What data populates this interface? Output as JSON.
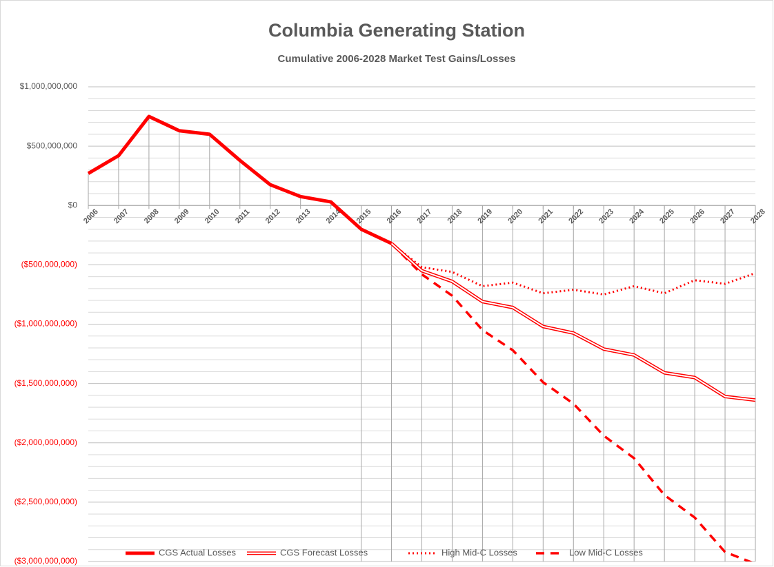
{
  "chart_data": {
    "type": "line",
    "title": "Columbia Generating Station",
    "subtitle": "Cumulative 2006-2028 Market Test Gains/Losses",
    "categories": [
      "2006",
      "2007",
      "2008",
      "2009",
      "2010",
      "2011",
      "2012",
      "2013",
      "2014",
      "2015",
      "2016",
      "2017",
      "2018",
      "2019",
      "2020",
      "2021",
      "2022",
      "2023",
      "2024",
      "2025",
      "2026",
      "2027",
      "2028"
    ],
    "series": [
      {
        "name": "CGS Actual Losses",
        "color": "#ff0000",
        "style": "solid",
        "values": [
          270000000,
          420000000,
          750000000,
          630000000,
          600000000,
          380000000,
          175000000,
          75000000,
          30000000,
          -200000000,
          -320000000,
          null,
          null,
          null,
          null,
          null,
          null,
          null,
          null,
          null,
          null,
          null,
          null
        ]
      },
      {
        "name": "CGS Forecast Losses",
        "color": "#ff0000",
        "style": "double",
        "values": [
          null,
          null,
          null,
          null,
          null,
          null,
          null,
          null,
          null,
          null,
          -320000000,
          -550000000,
          -640000000,
          -810000000,
          -860000000,
          -1020000000,
          -1075000000,
          -1210000000,
          -1260000000,
          -1410000000,
          -1450000000,
          -1610000000,
          -1640000000
        ]
      },
      {
        "name": "High Mid-C Losses",
        "color": "#ff0000",
        "style": "dotted",
        "values": [
          null,
          null,
          null,
          null,
          null,
          null,
          null,
          null,
          null,
          null,
          -320000000,
          -520000000,
          -560000000,
          -680000000,
          -650000000,
          -740000000,
          -710000000,
          -750000000,
          -680000000,
          -740000000,
          -630000000,
          -660000000,
          -570000000
        ]
      },
      {
        "name": "Low Mid-C Losses",
        "color": "#ff0000",
        "style": "dashed",
        "values": [
          null,
          null,
          null,
          null,
          null,
          null,
          null,
          null,
          null,
          null,
          -320000000,
          -580000000,
          -760000000,
          -1050000000,
          -1220000000,
          -1490000000,
          -1670000000,
          -1940000000,
          -2130000000,
          -2440000000,
          -2630000000,
          -2920000000,
          -3020000000
        ]
      }
    ],
    "ylim": [
      -3000000000,
      1000000000
    ],
    "yticks": [
      {
        "value": 1000000000,
        "label": "$1,000,000,000"
      },
      {
        "value": 500000000,
        "label": "$500,000,000"
      },
      {
        "value": 0,
        "label": "$0"
      },
      {
        "value": -500000000,
        "label": "($500,000,000)"
      },
      {
        "value": -1000000000,
        "label": "($1,000,000,000)"
      },
      {
        "value": -1500000000,
        "label": "($1,500,000,000)"
      },
      {
        "value": -2000000000,
        "label": "($2,000,000,000)"
      },
      {
        "value": -2500000000,
        "label": "($2,500,000,000)"
      },
      {
        "value": -3000000000,
        "label": "($3,000,000,000)"
      }
    ],
    "yminor": [
      900000000,
      800000000,
      700000000,
      600000000,
      400000000,
      300000000,
      200000000,
      100000000,
      -100000000,
      -200000000,
      -300000000,
      -400000000,
      -600000000,
      -700000000,
      -800000000,
      -900000000,
      -1100000000,
      -1200000000,
      -1300000000,
      -1400000000,
      -1600000000,
      -1700000000,
      -1800000000,
      -1900000000,
      -2100000000,
      -2200000000,
      -2300000000,
      -2400000000,
      -2600000000,
      -2700000000,
      -2800000000,
      -2900000000
    ],
    "grid": true,
    "legend": "bottom",
    "negative_label_color": "#ff0000"
  }
}
